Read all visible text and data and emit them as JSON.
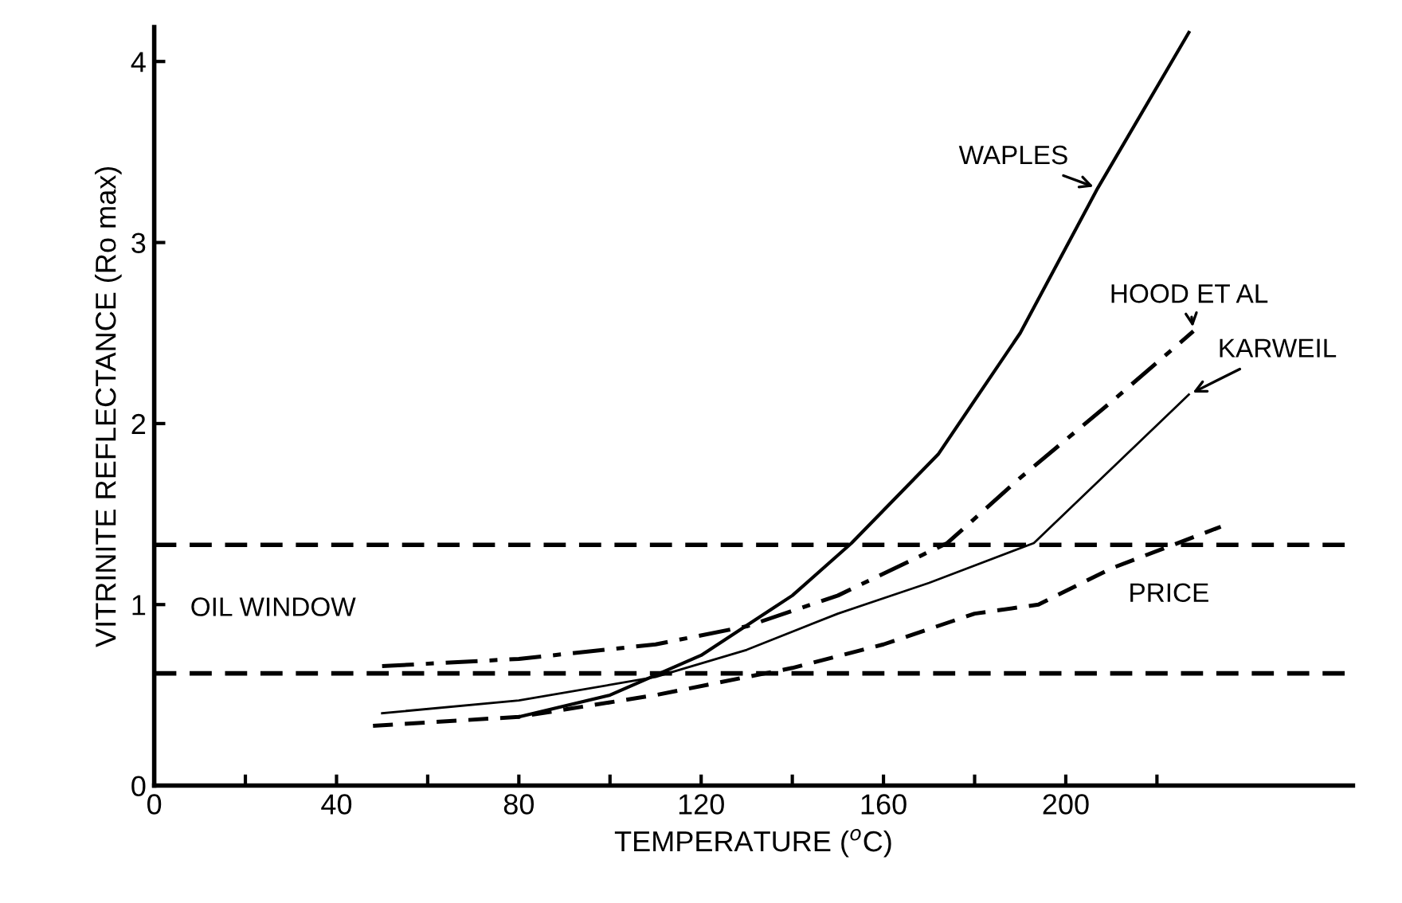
{
  "chart_data": {
    "type": "line",
    "xlabel": "TEMPERATURE ($^{o}$C)",
    "ylabel": "VITRINITE REFLECTANCE (Ro max)",
    "xlim": [
      0,
      263
    ],
    "ylim": [
      0,
      4.19
    ],
    "xticks": [
      0,
      {
        "value": 20,
        "label": null
      },
      40,
      {
        "value": 60,
        "label": null
      },
      80,
      {
        "value": 100,
        "label": null
      },
      120,
      {
        "value": 140,
        "label": null
      },
      160,
      {
        "value": 180,
        "label": null
      },
      200,
      {
        "value": 220,
        "label": null
      }
    ],
    "yticks": [
      0,
      1,
      2,
      3,
      4
    ],
    "series": [
      {
        "name": "WAPLES",
        "color": "#000000",
        "line_style": "solid",
        "x": [
          80,
          100,
          120,
          140,
          153,
          172,
          190,
          207,
          227
        ],
        "values": [
          0.38,
          0.5,
          0.72,
          1.05,
          1.34,
          1.83,
          2.5,
          3.3,
          4.16
        ]
      },
      {
        "name": "HOOD ET AL",
        "color": "#000000",
        "line_style": "dashdot",
        "x": [
          50,
          80,
          110,
          130,
          150,
          174,
          190,
          210,
          228
        ],
        "values": [
          0.66,
          0.7,
          0.78,
          0.88,
          1.05,
          1.34,
          1.7,
          2.12,
          2.51
        ]
      },
      {
        "name": "KARWEIL",
        "color": "#000000",
        "line_style": "solid",
        "x": [
          50,
          80,
          110,
          130,
          150,
          170,
          193,
          210,
          227
        ],
        "values": [
          0.4,
          0.47,
          0.6,
          0.75,
          0.95,
          1.12,
          1.34,
          1.75,
          2.16
        ]
      },
      {
        "name": "PRICE",
        "color": "#000000",
        "line_style": "dashed",
        "x": [
          48,
          80,
          110,
          140,
          160,
          180,
          194,
          210,
          234
        ],
        "values": [
          0.33,
          0.38,
          0.5,
          0.65,
          0.78,
          0.95,
          1.0,
          1.2,
          1.43
        ]
      }
    ],
    "ref_lines": [
      {
        "axis": "y",
        "value": 1.33,
        "color": "#000000",
        "line_style": "dashed"
      },
      {
        "axis": "y",
        "value": 0.62,
        "color": "#000000",
        "line_style": "dashed"
      }
    ],
    "annotations": [
      "OIL WINDOW"
    ],
    "legend": false,
    "grid": false
  }
}
